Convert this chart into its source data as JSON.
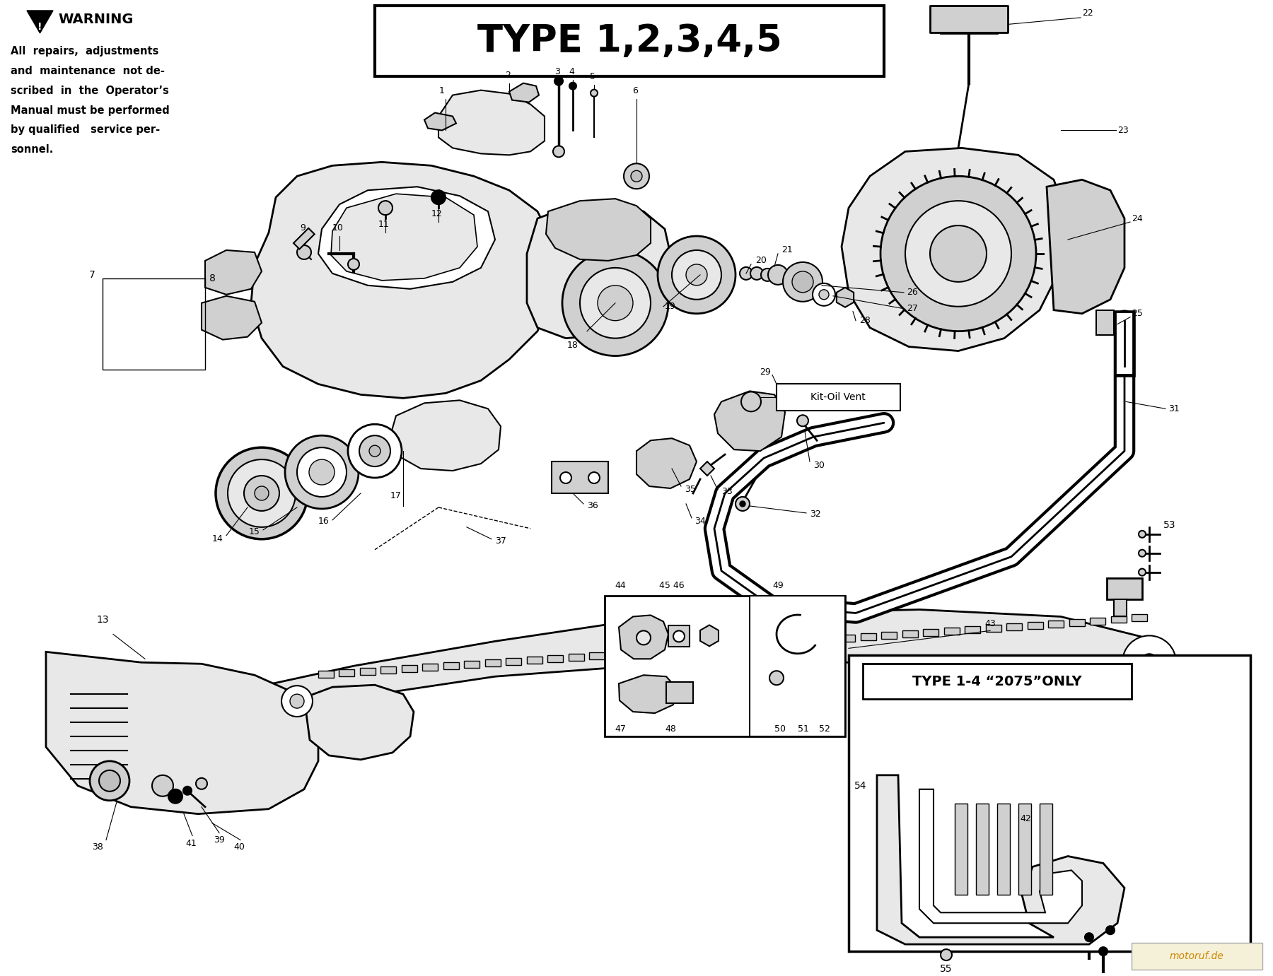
{
  "title": "TYPE 1,2,3,4,5",
  "warning_title": "WARNING",
  "warning_text_line1": "All  repairs,  adjustments",
  "warning_text_line2": "and  maintenance  not de-",
  "warning_text_line3": "scribed  in  the  Operator’s",
  "warning_text_line4": "Manual must be performed",
  "warning_text_line5": "by qualified   service per-",
  "warning_text_line6": "sonnel.",
  "type_1_4_label": "TYPE 1-4 “2075”ONLY",
  "kit_oil_vent": "Kit-Oil Vent",
  "watermark": "motoruf.de",
  "bg": "#ffffff",
  "black": "#000000",
  "gray1": "#e8e8e8",
  "gray2": "#d0d0d0",
  "gray3": "#c0c0c0",
  "watermark_bg": "#f5f0d8",
  "watermark_fg": "#cc8800"
}
